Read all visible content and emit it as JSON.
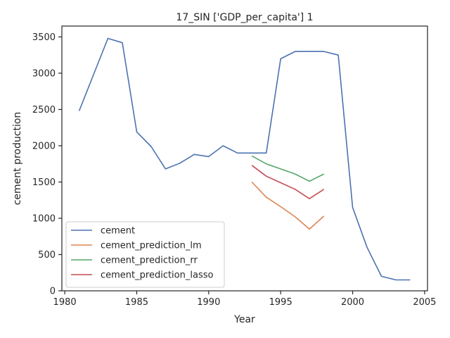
{
  "chart_data": {
    "type": "line",
    "title": "17_SIN ['GDP_per_capita'] 1",
    "xlabel": "Year",
    "ylabel": "cement production",
    "xlim": [
      1979.8,
      2005.2
    ],
    "ylim": [
      0,
      3650
    ],
    "xticks": [
      1980,
      1985,
      1990,
      1995,
      2000,
      2005
    ],
    "yticks": [
      0,
      500,
      1000,
      1500,
      2000,
      2500,
      3000,
      3500
    ],
    "grid": false,
    "legend_position": "lower-left",
    "series": [
      {
        "name": "cement",
        "color": "#4c72b0",
        "x": [
          1981,
          1982,
          1983,
          1984,
          1985,
          1986,
          1987,
          1988,
          1989,
          1990,
          1991,
          1992,
          1993,
          1994,
          1995,
          1996,
          1997,
          1998,
          1999,
          2000,
          2001,
          2002,
          2003,
          2004
        ],
        "y": [
          2480,
          2980,
          3480,
          3420,
          2190,
          1990,
          1680,
          1760,
          1880,
          1850,
          2000,
          1900,
          1900,
          1900,
          3200,
          3300,
          3300,
          3300,
          3250,
          1150,
          600,
          200,
          150,
          150
        ]
      },
      {
        "name": "cement_prediction_lm",
        "color": "#dd8452",
        "x": [
          1993,
          1994,
          1995,
          1996,
          1997,
          1998
        ],
        "y": [
          1500,
          1290,
          1160,
          1020,
          850,
          1030
        ]
      },
      {
        "name": "cement_prediction_rr",
        "color": "#55a868",
        "x": [
          1993,
          1994,
          1995,
          1996,
          1997,
          1998
        ],
        "y": [
          1860,
          1750,
          1680,
          1610,
          1510,
          1610
        ]
      },
      {
        "name": "cement_prediction_lasso",
        "color": "#c44e52",
        "x": [
          1993,
          1994,
          1995,
          1996,
          1997,
          1998
        ],
        "y": [
          1730,
          1580,
          1490,
          1400,
          1270,
          1400
        ]
      }
    ]
  }
}
